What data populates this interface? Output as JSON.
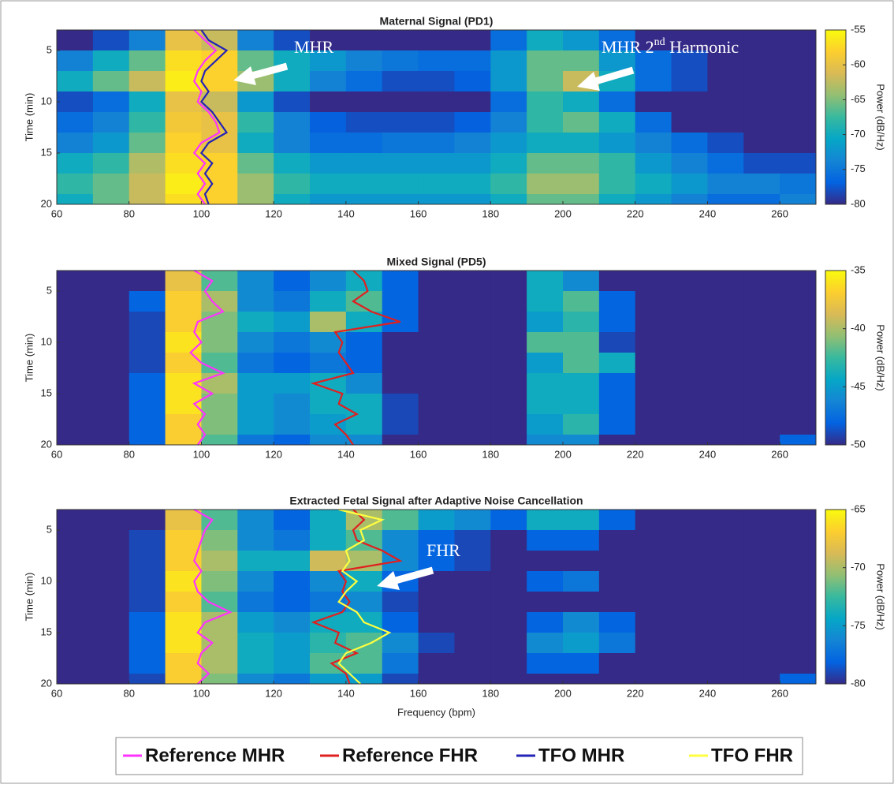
{
  "chart_data": [
    {
      "type": "heatmap",
      "title": "Maternal Signal (PD1)",
      "ylabel": "Time (min)",
      "colorbar_label": "Power (dB/Hz)",
      "colormap": "parula",
      "xlim": [
        60,
        270
      ],
      "xticks": [
        60,
        80,
        100,
        120,
        140,
        160,
        180,
        200,
        220,
        240,
        260
      ],
      "ylim": [
        20,
        3
      ],
      "yticks": [
        5,
        10,
        15,
        20
      ],
      "clim": [
        -80,
        -55
      ],
      "cticks": [
        -80,
        -75,
        -70,
        -65,
        -60,
        -55
      ],
      "x_edges": [
        60,
        70,
        80,
        90,
        100,
        110,
        120,
        130,
        140,
        150,
        160,
        170,
        180,
        190,
        200,
        210,
        220,
        230,
        240,
        250,
        260,
        270
      ],
      "y_edges": [
        3,
        5,
        7,
        9,
        11,
        13,
        15,
        17,
        19,
        20
      ],
      "z": [
        [
          -80,
          -78,
          -74,
          -60,
          -62,
          -74,
          -78,
          -80,
          -80,
          -80,
          -80,
          -80,
          -76,
          -70,
          -72,
          -76,
          -80,
          -80,
          -80,
          -80,
          -80
        ],
        [
          -74,
          -70,
          -66,
          -57,
          -58,
          -66,
          -70,
          -72,
          -74,
          -75,
          -76,
          -76,
          -72,
          -66,
          -66,
          -72,
          -76,
          -78,
          -80,
          -80,
          -80
        ],
        [
          -70,
          -66,
          -62,
          -56,
          -58,
          -64,
          -70,
          -74,
          -76,
          -78,
          -78,
          -77,
          -72,
          -66,
          -62,
          -70,
          -76,
          -78,
          -80,
          -80,
          -80
        ],
        [
          -78,
          -76,
          -70,
          -60,
          -62,
          -72,
          -78,
          -80,
          -80,
          -80,
          -80,
          -80,
          -76,
          -68,
          -70,
          -76,
          -80,
          -80,
          -80,
          -80,
          -80
        ],
        [
          -76,
          -74,
          -68,
          -59,
          -60,
          -68,
          -74,
          -77,
          -78,
          -78,
          -78,
          -77,
          -74,
          -68,
          -66,
          -70,
          -76,
          -80,
          -80,
          -80,
          -80
        ],
        [
          -74,
          -72,
          -66,
          -58,
          -60,
          -70,
          -74,
          -76,
          -76,
          -75,
          -75,
          -74,
          -72,
          -70,
          -70,
          -72,
          -74,
          -76,
          -78,
          -80,
          -80
        ],
        [
          -70,
          -68,
          -63,
          -57,
          -58,
          -66,
          -70,
          -72,
          -72,
          -72,
          -72,
          -72,
          -70,
          -66,
          -66,
          -68,
          -72,
          -74,
          -76,
          -78,
          -78
        ],
        [
          -68,
          -66,
          -62,
          -56,
          -58,
          -64,
          -68,
          -70,
          -70,
          -70,
          -70,
          -70,
          -68,
          -64,
          -64,
          -68,
          -70,
          -72,
          -74,
          -74,
          -75
        ],
        [
          -70,
          -66,
          -62,
          -57,
          -58,
          -64,
          -70,
          -72,
          -72,
          -72,
          -72,
          -72,
          -70,
          -66,
          -66,
          -70,
          -72,
          -74,
          -76,
          -76,
          -74
        ]
      ],
      "times": [
        3,
        4,
        5,
        6,
        7,
        8,
        9,
        10,
        11,
        12,
        13,
        14,
        15,
        16,
        17,
        18,
        19,
        20
      ],
      "series": [
        {
          "name": "Reference MHR",
          "color": "#ff33ff",
          "values": [
            98,
            101,
            104,
            101,
            99,
            98,
            100,
            99,
            102,
            104,
            105,
            100,
            98,
            101,
            99,
            101,
            99,
            101
          ]
        },
        {
          "name": "TFO MHR",
          "color": "#2323b8",
          "values": [
            100,
            102,
            107,
            104,
            101,
            100,
            102,
            100,
            103,
            105,
            107,
            102,
            100,
            103,
            101,
            103,
            101,
            102
          ]
        }
      ],
      "annotations": [
        {
          "text": "MHR"
        },
        {
          "parts": [
            "MHR 2",
            "nd",
            " Harmonic"
          ]
        }
      ]
    },
    {
      "type": "heatmap",
      "title": "Mixed Signal (PD5)",
      "ylabel": "Time (min)",
      "colorbar_label": "Power (dB/Hz)",
      "colormap": "parula",
      "xlim": [
        60,
        270
      ],
      "xticks": [
        60,
        80,
        100,
        120,
        140,
        160,
        180,
        200,
        220,
        240,
        260
      ],
      "ylim": [
        20,
        3
      ],
      "yticks": [
        5,
        10,
        15,
        20
      ],
      "clim": [
        -50,
        -35
      ],
      "cticks": [
        -50,
        -45,
        -40,
        -35
      ],
      "x_edges": [
        60,
        70,
        80,
        90,
        100,
        110,
        120,
        130,
        140,
        150,
        160,
        170,
        180,
        190,
        200,
        210,
        220,
        230,
        240,
        250,
        260,
        270
      ],
      "y_edges": [
        3,
        5,
        7,
        9,
        11,
        13,
        15,
        17,
        19,
        20
      ],
      "z": [
        [
          -50,
          -50,
          -50,
          -38,
          -42,
          -46,
          -48,
          -46,
          -44,
          -48,
          -50,
          -50,
          -50,
          -44,
          -46,
          -50,
          -50,
          -50,
          -50,
          -50,
          -50
        ],
        [
          -50,
          -50,
          -48,
          -37,
          -40,
          -46,
          -47,
          -44,
          -42,
          -48,
          -50,
          -50,
          -50,
          -44,
          -42,
          -48,
          -50,
          -50,
          -50,
          -50,
          -50
        ],
        [
          -50,
          -50,
          -49,
          -37,
          -41,
          -44,
          -45,
          -40,
          -44,
          -48,
          -50,
          -50,
          -50,
          -45,
          -43,
          -48,
          -50,
          -50,
          -50,
          -50,
          -50
        ],
        [
          -50,
          -50,
          -49,
          -36,
          -41,
          -46,
          -47,
          -46,
          -48,
          -50,
          -50,
          -50,
          -50,
          -42,
          -42,
          -49,
          -50,
          -50,
          -50,
          -50,
          -50
        ],
        [
          -50,
          -50,
          -49,
          -37,
          -42,
          -47,
          -48,
          -47,
          -48,
          -50,
          -50,
          -50,
          -50,
          -45,
          -42,
          -44,
          -50,
          -50,
          -50,
          -50,
          -50
        ],
        [
          -50,
          -50,
          -48,
          -36,
          -40,
          -45,
          -45,
          -44,
          -46,
          -50,
          -50,
          -50,
          -50,
          -44,
          -44,
          -48,
          -50,
          -50,
          -50,
          -50,
          -50
        ],
        [
          -50,
          -50,
          -48,
          -36,
          -41,
          -45,
          -46,
          -44,
          -44,
          -49,
          -50,
          -50,
          -50,
          -44,
          -44,
          -48,
          -50,
          -50,
          -50,
          -50,
          -50
        ],
        [
          -50,
          -50,
          -48,
          -37,
          -41,
          -45,
          -46,
          -45,
          -44,
          -49,
          -50,
          -50,
          -50,
          -45,
          -43,
          -48,
          -50,
          -50,
          -50,
          -50,
          -50
        ],
        [
          -50,
          -50,
          -48,
          -37,
          -42,
          -47,
          -48,
          -46,
          -46,
          -50,
          -50,
          -50,
          -50,
          -46,
          -46,
          -50,
          -50,
          -50,
          -50,
          -50,
          -48
        ]
      ],
      "times": [
        3,
        4,
        5,
        6,
        7,
        8,
        9,
        10,
        11,
        12,
        13,
        14,
        15,
        16,
        17,
        18,
        19,
        20
      ],
      "series": [
        {
          "name": "Reference MHR",
          "color": "#ff33ff",
          "values": [
            98,
            103,
            101,
            103,
            106,
            99,
            98,
            100,
            97,
            100,
            106,
            98,
            103,
            98,
            101,
            99,
            101,
            99
          ]
        },
        {
          "name": "Reference FHR",
          "color": "#e01f1f",
          "values": [
            142,
            145,
            146,
            142,
            147,
            155,
            137,
            139,
            138,
            140,
            142,
            131,
            139,
            138,
            143,
            137,
            140,
            142
          ]
        }
      ]
    },
    {
      "type": "heatmap",
      "title": "Extracted Fetal Signal after Adaptive Noise Cancellation",
      "xlabel": "Frequency (bpm)",
      "ylabel": "Time (min)",
      "colorbar_label": "Power (dB/Hz)",
      "colormap": "parula",
      "xlim": [
        60,
        270
      ],
      "xticks": [
        60,
        80,
        100,
        120,
        140,
        160,
        180,
        200,
        220,
        240,
        260
      ],
      "ylim": [
        20,
        3
      ],
      "yticks": [
        5,
        10,
        15,
        20
      ],
      "clim": [
        -80,
        -65
      ],
      "cticks": [
        -80,
        -75,
        -70,
        -65
      ],
      "x_edges": [
        60,
        70,
        80,
        90,
        100,
        110,
        120,
        130,
        140,
        150,
        160,
        170,
        180,
        190,
        200,
        210,
        220,
        230,
        240,
        250,
        260,
        270
      ],
      "y_edges": [
        3,
        5,
        7,
        9,
        11,
        13,
        15,
        17,
        19,
        20
      ],
      "z": [
        [
          -80,
          -80,
          -80,
          -68,
          -72,
          -76,
          -78,
          -74,
          -70,
          -72,
          -75,
          -76,
          -78,
          -74,
          -74,
          -78,
          -80,
          -80,
          -80,
          -80,
          -80
        ],
        [
          -80,
          -80,
          -79,
          -67,
          -71,
          -76,
          -77,
          -74,
          -72,
          -76,
          -78,
          -79,
          -80,
          -78,
          -78,
          -80,
          -80,
          -80,
          -80,
          -80,
          -80
        ],
        [
          -80,
          -80,
          -79,
          -67,
          -70,
          -74,
          -74,
          -69,
          -70,
          -76,
          -78,
          -79,
          -80,
          -80,
          -80,
          -80,
          -80,
          -80,
          -80,
          -80,
          -80
        ],
        [
          -80,
          -80,
          -79,
          -66,
          -71,
          -76,
          -78,
          -76,
          -74,
          -78,
          -80,
          -80,
          -80,
          -78,
          -77,
          -80,
          -80,
          -80,
          -80,
          -80,
          -80
        ],
        [
          -80,
          -80,
          -79,
          -67,
          -72,
          -77,
          -78,
          -77,
          -76,
          -79,
          -80,
          -80,
          -80,
          -80,
          -80,
          -80,
          -80,
          -80,
          -80,
          -80,
          -80
        ],
        [
          -80,
          -80,
          -78,
          -66,
          -70,
          -75,
          -76,
          -74,
          -74,
          -78,
          -80,
          -80,
          -80,
          -78,
          -76,
          -78,
          -80,
          -80,
          -80,
          -80,
          -80
        ],
        [
          -80,
          -80,
          -78,
          -66,
          -70,
          -74,
          -75,
          -73,
          -72,
          -76,
          -79,
          -80,
          -80,
          -76,
          -75,
          -77,
          -80,
          -80,
          -80,
          -80,
          -80
        ],
        [
          -80,
          -80,
          -78,
          -67,
          -70,
          -74,
          -75,
          -72,
          -72,
          -77,
          -80,
          -80,
          -80,
          -78,
          -78,
          -80,
          -80,
          -80,
          -80,
          -80,
          -80
        ],
        [
          -80,
          -80,
          -79,
          -67,
          -71,
          -76,
          -77,
          -75,
          -75,
          -79,
          -80,
          -80,
          -80,
          -80,
          -80,
          -80,
          -80,
          -80,
          -80,
          -80,
          -78
        ]
      ],
      "times": [
        3,
        4,
        5,
        6,
        7,
        8,
        9,
        10,
        11,
        12,
        13,
        14,
        15,
        16,
        17,
        18,
        19,
        20
      ],
      "series": [
        {
          "name": "Reference MHR",
          "color": "#ff33ff",
          "values": [
            98,
            103,
            101,
            100,
            99,
            98,
            100,
            98,
            99,
            102,
            108,
            101,
            99,
            103,
            100,
            99,
            102,
            99
          ]
        },
        {
          "name": "Reference FHR",
          "color": "#e01f1f",
          "values": [
            142,
            145,
            142,
            143,
            150,
            155,
            138,
            140,
            139,
            141,
            139,
            131,
            138,
            137,
            143,
            136,
            140,
            141
          ]
        },
        {
          "name": "TFO FHR",
          "color": "#ffff40",
          "values": [
            138,
            150,
            144,
            145,
            140,
            141,
            139,
            143,
            140,
            138,
            143,
            145,
            152,
            147,
            140,
            138,
            141,
            144
          ]
        }
      ],
      "annotations": [
        {
          "text": "FHR"
        }
      ]
    }
  ],
  "legend": [
    {
      "name": "Reference MHR",
      "color": "#ff33ff"
    },
    {
      "name": "Reference FHR",
      "color": "#e01f1f"
    },
    {
      "name": "TFO MHR",
      "color": "#2323b8"
    },
    {
      "name": "TFO FHR",
      "color": "#ffff40"
    }
  ]
}
